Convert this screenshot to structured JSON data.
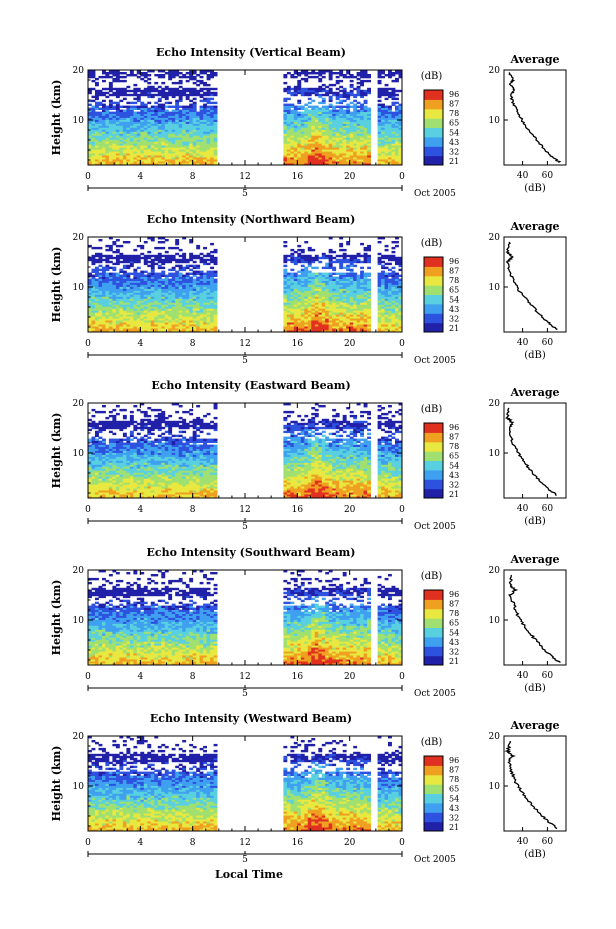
{
  "colors": {
    "colormap": [
      "#2020a8",
      "#2e52e0",
      "#3fa0f0",
      "#58d0e0",
      "#a0e070",
      "#e8e840",
      "#f0a020",
      "#e03020"
    ],
    "background": "#ffffff"
  },
  "x_axis_label": "Local Time",
  "date_label": "Oct 2005",
  "x_secondary_tick": "5",
  "colorbar": {
    "unit": "(dB)",
    "ticks": [
      "96",
      "87",
      "78",
      "65",
      "54",
      "43",
      "32",
      "21"
    ]
  },
  "panels": [
    {
      "title": "Echo Intensity (Vertical Beam)",
      "y_label": "Height (km)",
      "profile_title": "Average",
      "profile_unit": "(dB)",
      "profile_x_ticks": [
        "40",
        "60"
      ]
    },
    {
      "title": "Echo Intensity (Northward Beam)",
      "y_label": "Height (km)",
      "profile_title": "Average",
      "profile_unit": "(dB)",
      "profile_x_ticks": [
        "40",
        "60"
      ]
    },
    {
      "title": "Echo Intensity (Eastward Beam)",
      "y_label": "Height (km)",
      "profile_title": "Average",
      "profile_unit": "(dB)",
      "profile_x_ticks": [
        "40",
        "60"
      ]
    },
    {
      "title": "Echo Intensity (Southward Beam)",
      "y_label": "Height (km)",
      "profile_title": "Average",
      "profile_unit": "(dB)",
      "profile_x_ticks": [
        "40",
        "60"
      ]
    },
    {
      "title": "Echo Intensity (Westward Beam)",
      "y_label": "Height (km)",
      "profile_title": "Average",
      "profile_unit": "(dB)",
      "profile_x_ticks": [
        "40",
        "60"
      ]
    }
  ],
  "chart_data": {
    "type": "heatmap",
    "x_label": "Local Time",
    "x_ticks": [
      "0",
      "4",
      "8",
      "12",
      "16",
      "20",
      "0"
    ],
    "x_range_hours": [
      0,
      24
    ],
    "y_label": "Height (km)",
    "y_ticks": [
      "10",
      "20"
    ],
    "y_range_km": [
      1,
      20
    ],
    "color_scale_db": [
      21,
      96
    ],
    "colorbar_ticks_db": [
      96,
      87,
      78,
      65,
      54,
      43,
      32,
      21
    ],
    "data_gaps_hours": [
      [
        10,
        15
      ],
      [
        21.5,
        22.2
      ]
    ],
    "average_profile_x_range_db": [
      25,
      75
    ],
    "average_profile_x_ticks_db": [
      40,
      60
    ],
    "beams": [
      {
        "name": "Vertical Beam",
        "average_profile": [
          [
            70,
            1.5
          ],
          [
            62,
            3
          ],
          [
            55,
            5
          ],
          [
            48,
            7
          ],
          [
            42,
            9
          ],
          [
            37,
            11
          ],
          [
            33,
            13
          ],
          [
            30,
            15
          ],
          [
            34,
            16
          ],
          [
            30,
            17
          ],
          [
            32,
            18
          ],
          [
            29,
            19.5
          ]
        ]
      },
      {
        "name": "Northward Beam",
        "average_profile": [
          [
            68,
            1.5
          ],
          [
            60,
            3
          ],
          [
            52,
            5
          ],
          [
            45,
            7
          ],
          [
            38,
            9
          ],
          [
            33,
            11
          ],
          [
            30,
            13
          ],
          [
            28,
            15
          ],
          [
            32,
            16
          ],
          [
            28,
            17
          ],
          [
            29,
            19
          ]
        ]
      },
      {
        "name": "Eastward Beam",
        "average_profile": [
          [
            68,
            1.5
          ],
          [
            60,
            3
          ],
          [
            52,
            5
          ],
          [
            45,
            7
          ],
          [
            39,
            9
          ],
          [
            34,
            11
          ],
          [
            31,
            13
          ],
          [
            29,
            15
          ],
          [
            32,
            16
          ],
          [
            28,
            17
          ],
          [
            29,
            19
          ]
        ]
      },
      {
        "name": "Southward Beam",
        "average_profile": [
          [
            70,
            1.5
          ],
          [
            62,
            3
          ],
          [
            54,
            5
          ],
          [
            47,
            7
          ],
          [
            41,
            9
          ],
          [
            36,
            11
          ],
          [
            33,
            13
          ],
          [
            30,
            15
          ],
          [
            34,
            16
          ],
          [
            30,
            17
          ],
          [
            31,
            19
          ]
        ]
      },
      {
        "name": "Westward Beam",
        "average_profile": [
          [
            68,
            1.5
          ],
          [
            60,
            3
          ],
          [
            52,
            5
          ],
          [
            45,
            7
          ],
          [
            39,
            9
          ],
          [
            34,
            11
          ],
          [
            31,
            13
          ],
          [
            29,
            15
          ],
          [
            32,
            16
          ],
          [
            28,
            17
          ],
          [
            30,
            19
          ]
        ]
      }
    ]
  }
}
